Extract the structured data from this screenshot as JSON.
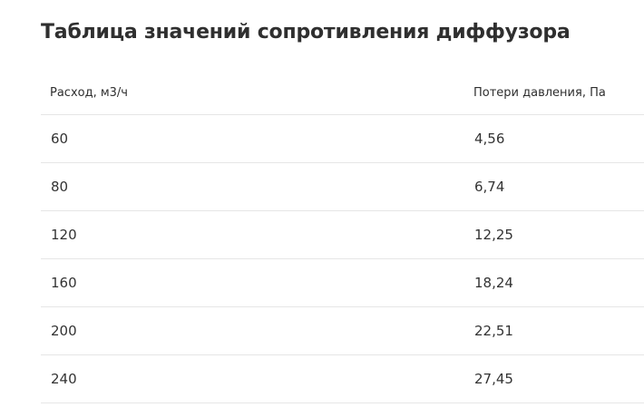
{
  "title": "Таблица значений сопротивления диффузора",
  "table": {
    "columns": [
      "Расход, м3/ч",
      "Потери давления, Па"
    ],
    "rows": [
      [
        "60",
        "4,56"
      ],
      [
        "80",
        "6,74"
      ],
      [
        "120",
        "12,25"
      ],
      [
        "160",
        "18,24"
      ],
      [
        "200",
        "22,51"
      ],
      [
        "240",
        "27,45"
      ]
    ]
  }
}
